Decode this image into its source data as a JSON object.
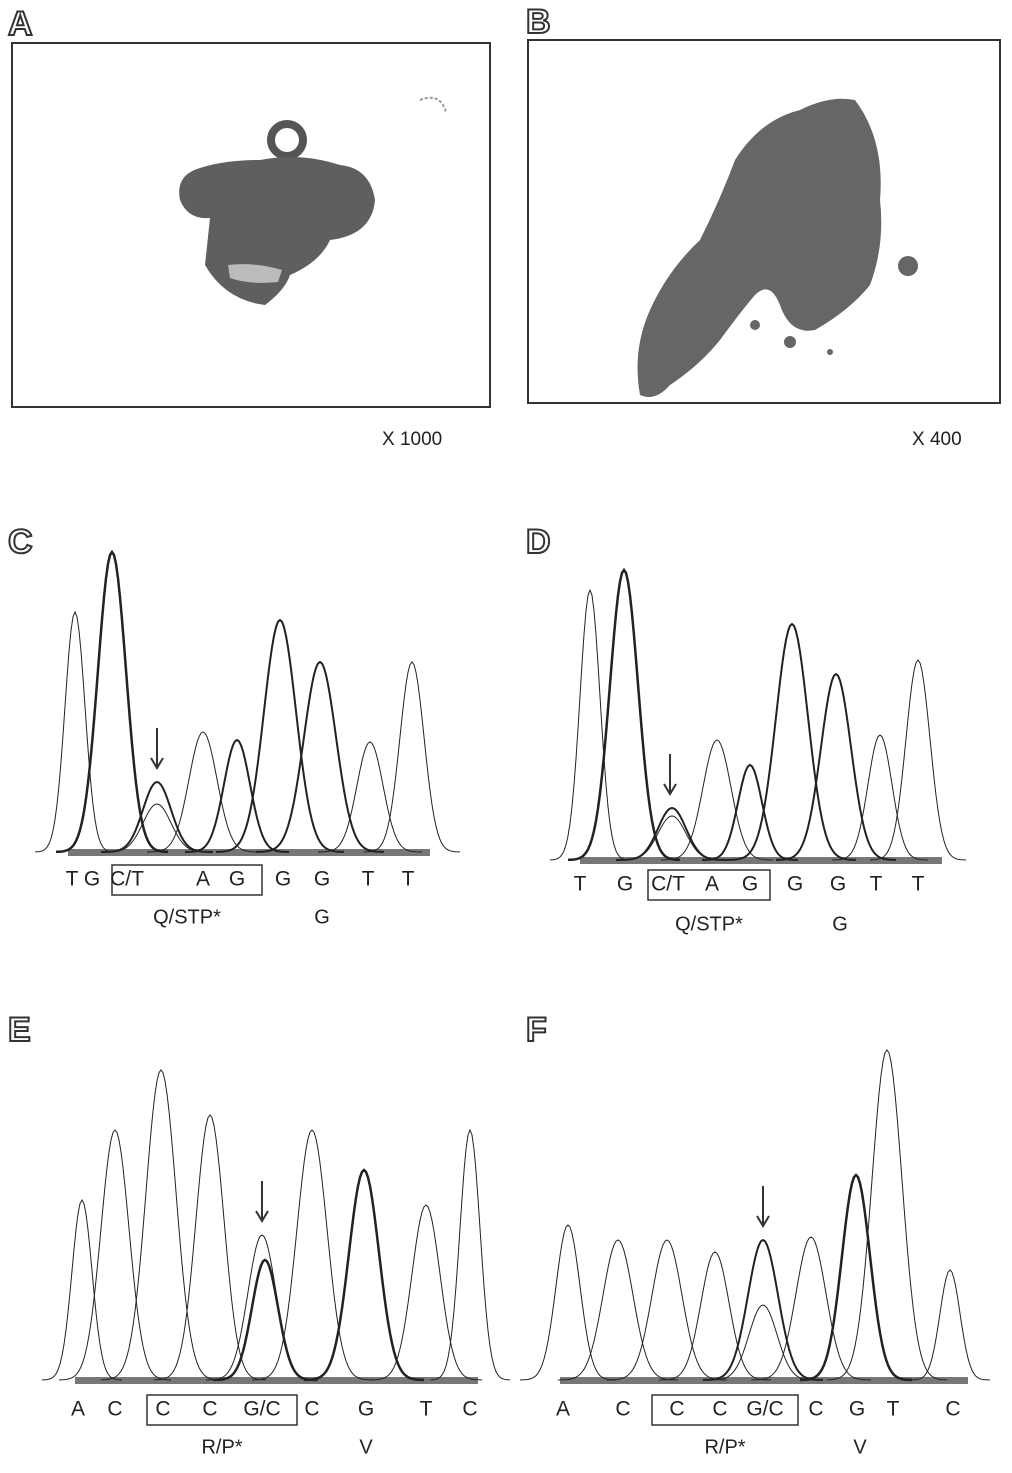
{
  "panels": [
    {
      "label": "A",
      "magnification": "X 1000"
    },
    {
      "label": "B",
      "magnification": "X 400"
    },
    {
      "label": "C",
      "bases": [
        "T",
        "G",
        "C/T",
        "A",
        "G",
        "G",
        "G",
        "T",
        "T"
      ],
      "codon": "Q/STP*",
      "next_codon": "G"
    },
    {
      "label": "D",
      "bases": [
        "T",
        "G",
        "C/T",
        "A",
        "G",
        "G",
        "G",
        "T",
        "T"
      ],
      "codon": "Q/STP*",
      "next_codon": "G"
    },
    {
      "label": "E",
      "bases": [
        "A",
        "C",
        "C",
        "C",
        "G/C",
        "C",
        "G",
        "T",
        "C"
      ],
      "codon": "R/P*",
      "next_codon": "V"
    },
    {
      "label": "F",
      "bases": [
        "A",
        "C",
        "C",
        "C",
        "G/C",
        "C",
        "G",
        "T",
        "C"
      ],
      "codon": "R/P*",
      "next_codon": "V"
    }
  ]
}
